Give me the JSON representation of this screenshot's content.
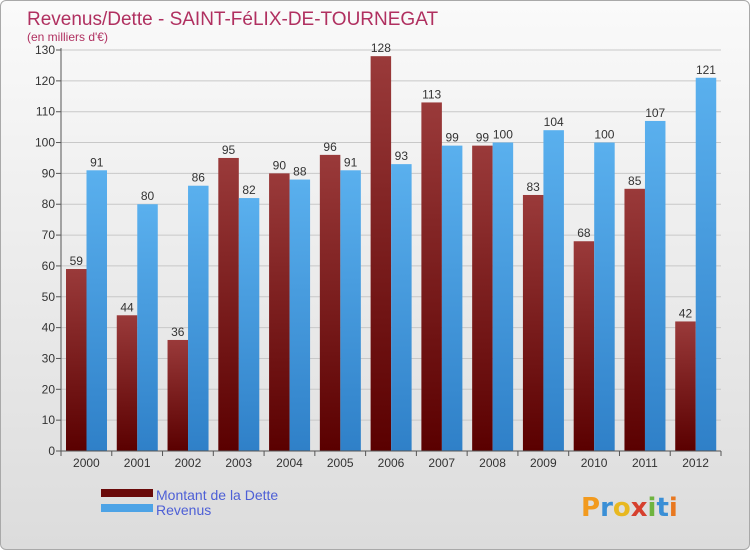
{
  "chart_data": {
    "type": "bar",
    "title": "Revenus/Dette - SAINT-FéLIX-DE-TOURNEGAT",
    "subtitle": "(en milliers d'€)",
    "categories": [
      "2000",
      "2001",
      "2002",
      "2003",
      "2004",
      "2005",
      "2006",
      "2007",
      "2008",
      "2009",
      "2010",
      "2011",
      "2012"
    ],
    "series": [
      {
        "name": "Montant de la Dette",
        "color": "#7a1a1a",
        "values": [
          59,
          44,
          36,
          95,
          90,
          96,
          128,
          113,
          99,
          83,
          68,
          85,
          42
        ]
      },
      {
        "name": "Revenus",
        "color": "#4da3e6",
        "values": [
          91,
          80,
          86,
          82,
          88,
          91,
          93,
          99,
          100,
          104,
          100,
          107,
          121
        ]
      }
    ],
    "ylim": [
      0,
      130
    ],
    "yticks": [
      0,
      10,
      20,
      30,
      40,
      50,
      60,
      70,
      80,
      90,
      100,
      110,
      120,
      130
    ],
    "grid": true,
    "legend_position": "bottom-left"
  },
  "brand": "Proxiti"
}
